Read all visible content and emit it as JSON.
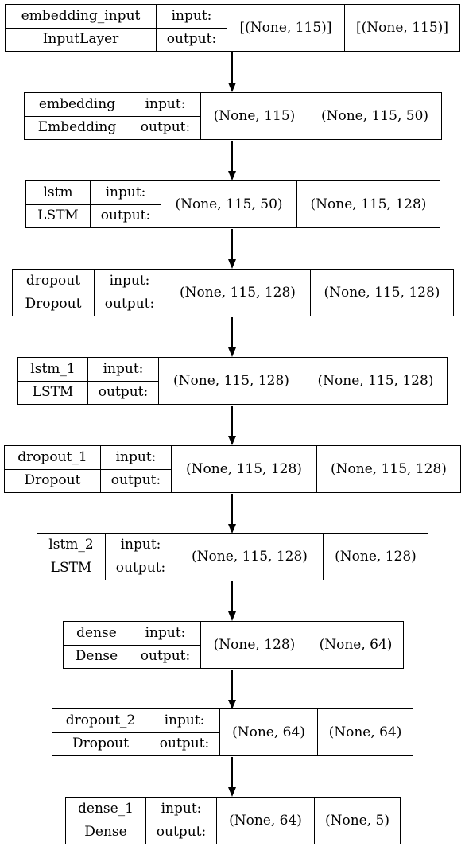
{
  "layers": [
    {
      "name": "embedding_input",
      "type": "InputLayer",
      "input_label": "input:",
      "output_label": "output:",
      "input_shape": "[(None, 115)]",
      "output_shape": "[(None, 115)]"
    },
    {
      "name": "embedding",
      "type": "Embedding",
      "input_label": "input:",
      "output_label": "output:",
      "input_shape": "(None, 115)",
      "output_shape": "(None, 115, 50)"
    },
    {
      "name": "lstm",
      "type": "LSTM",
      "input_label": "input:",
      "output_label": "output:",
      "input_shape": "(None, 115, 50)",
      "output_shape": "(None, 115, 128)"
    },
    {
      "name": "dropout",
      "type": "Dropout",
      "input_label": "input:",
      "output_label": "output:",
      "input_shape": "(None, 115, 128)",
      "output_shape": "(None, 115, 128)"
    },
    {
      "name": "lstm_1",
      "type": "LSTM",
      "input_label": "input:",
      "output_label": "output:",
      "input_shape": "(None, 115, 128)",
      "output_shape": "(None, 115, 128)"
    },
    {
      "name": "dropout_1",
      "type": "Dropout",
      "input_label": "input:",
      "output_label": "output:",
      "input_shape": "(None, 115, 128)",
      "output_shape": "(None, 115, 128)"
    },
    {
      "name": "lstm_2",
      "type": "LSTM",
      "input_label": "input:",
      "output_label": "output:",
      "input_shape": "(None, 115, 128)",
      "output_shape": "(None, 128)"
    },
    {
      "name": "dense",
      "type": "Dense",
      "input_label": "input:",
      "output_label": "output:",
      "input_shape": "(None, 128)",
      "output_shape": "(None, 64)"
    },
    {
      "name": "dropout_2",
      "type": "Dropout",
      "input_label": "input:",
      "output_label": "output:",
      "input_shape": "(None, 64)",
      "output_shape": "(None, 64)"
    },
    {
      "name": "dense_1",
      "type": "Dense",
      "input_label": "input:",
      "output_label": "output:",
      "input_shape": "(None, 64)",
      "output_shape": "(None, 5)"
    }
  ]
}
